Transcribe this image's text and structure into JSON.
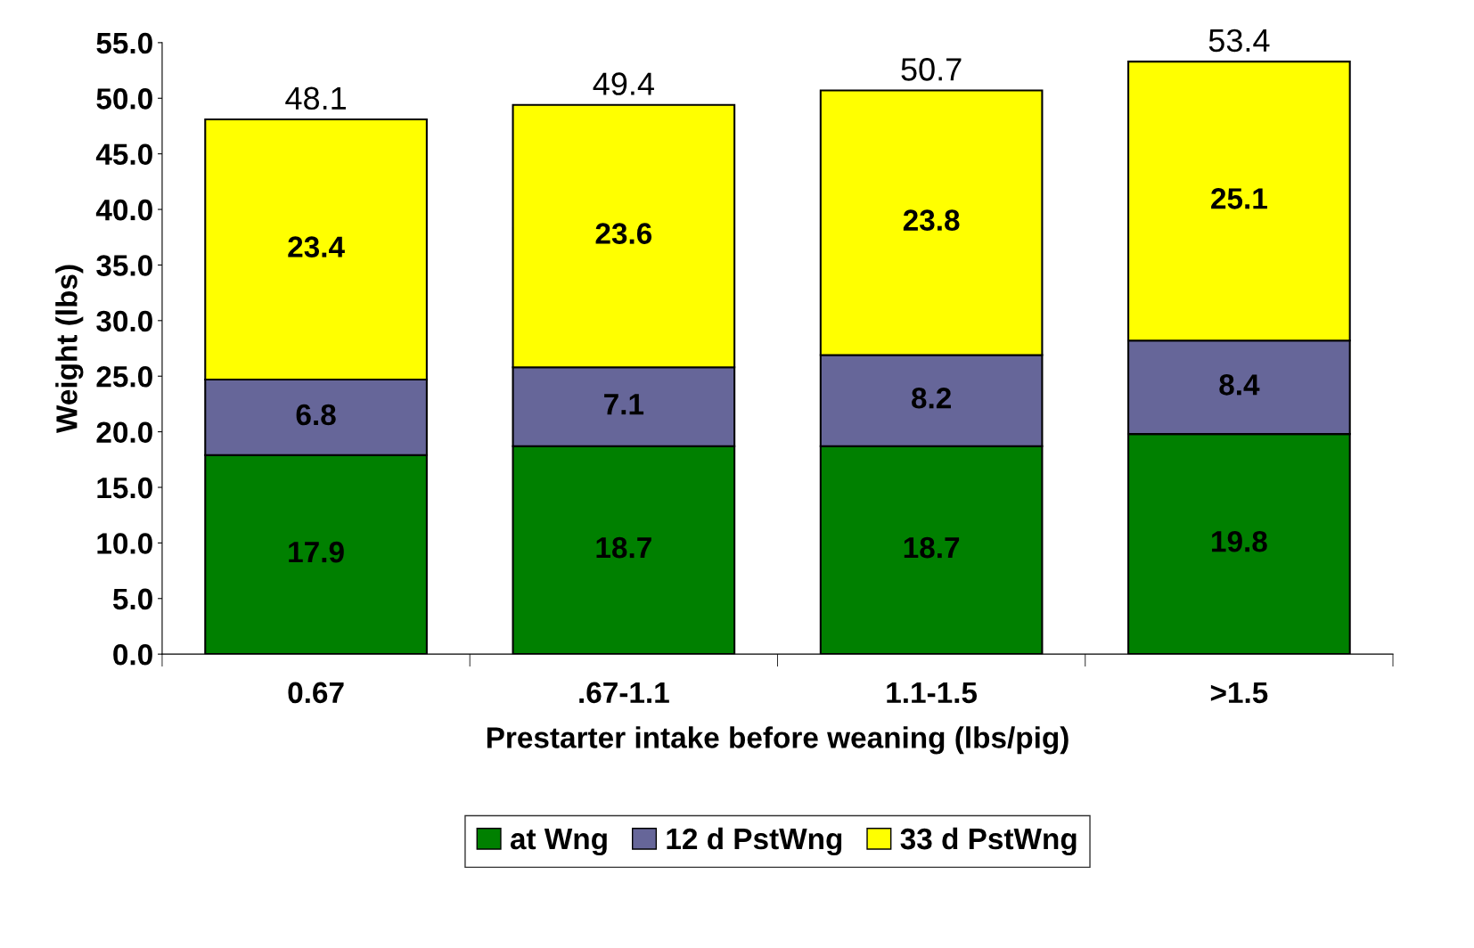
{
  "chart_data": {
    "type": "bar",
    "stacked": true,
    "xlabel": "Prestarter intake before weaning (lbs/pig)",
    "ylabel": "Weight (lbs)",
    "categories": [
      "0.67",
      ".67-1.1",
      "1.1-1.5",
      ">1.5"
    ],
    "series": [
      {
        "name": "at Wng",
        "color": "#008000",
        "values": [
          17.9,
          18.7,
          18.7,
          19.8
        ]
      },
      {
        "name": "12 d PstWng",
        "color": "#666699",
        "values": [
          6.8,
          7.1,
          8.2,
          8.4
        ]
      },
      {
        "name": "33 d PstWng",
        "color": "#ffff00",
        "values": [
          23.4,
          23.6,
          23.8,
          25.1
        ]
      }
    ],
    "totals": [
      "48.1",
      "49.4",
      "50.7",
      "53.4"
    ],
    "data_labels": true,
    "ylim": [
      0,
      55
    ],
    "yticks": [
      {
        "value": 0,
        "label": "0.0"
      },
      {
        "value": 5,
        "label": "5.0"
      },
      {
        "value": 10,
        "label": "10.0"
      },
      {
        "value": 15,
        "label": "15.0"
      },
      {
        "value": 20,
        "label": "20.0"
      },
      {
        "value": 25,
        "label": "25.0"
      },
      {
        "value": 30,
        "label": "30.0"
      },
      {
        "value": 35,
        "label": "35.0"
      },
      {
        "value": 40,
        "label": "40.0"
      },
      {
        "value": 45,
        "label": "45.0"
      },
      {
        "value": 50,
        "label": "50.0"
      },
      {
        "value": 55,
        "label": "55.0"
      }
    ],
    "grid": false,
    "legend": "bottom"
  }
}
